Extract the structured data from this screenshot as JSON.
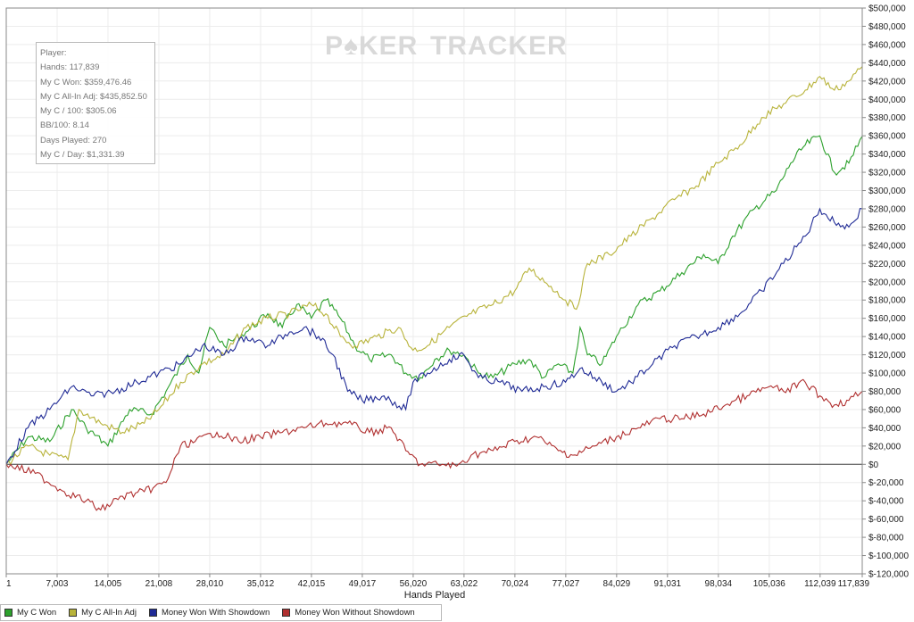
{
  "stats_box": {
    "lines": [
      "Player:",
      "Hands: 117,839",
      "My C Won: $359,476.46",
      "My C All-In Adj: $435,852.50",
      "My C / 100: $305.06",
      "BB/100: 8.14",
      "Days Played: 270",
      "My C / Day: $1,331.39"
    ]
  },
  "watermark": {
    "left": "P♠KER",
    "right": "TRACKER"
  },
  "legend": {
    "items": [
      {
        "label": "My C Won",
        "color": "#2da12d"
      },
      {
        "label": "My C All-In Adj",
        "color": "#b8b33a"
      },
      {
        "label": "Money Won With Showdown",
        "color": "#1f2a95"
      },
      {
        "label": "Money Won Without Showdown",
        "color": "#b03030"
      }
    ]
  },
  "chart_data": {
    "type": "line",
    "title": "",
    "xlabel": "Hands Played",
    "ylabel": "",
    "xlim": [
      1,
      117839
    ],
    "ylim": [
      -120000,
      500000
    ],
    "x_ticks": [
      1,
      7003,
      14005,
      21008,
      28010,
      35012,
      42015,
      49017,
      56020,
      63022,
      70024,
      77027,
      84029,
      91031,
      98034,
      105036,
      112039,
      117839
    ],
    "x_tick_labels": [
      "1",
      "7,003",
      "14,005",
      "21,008",
      "28,010",
      "35,012",
      "42,015",
      "49,017",
      "56,020",
      "63,022",
      "70,024",
      "77,027",
      "84,029",
      "91,031",
      "98,034",
      "105,036",
      "112,039",
      "117,839"
    ],
    "y_ticks": [
      -120000,
      -100000,
      -80000,
      -60000,
      -40000,
      -20000,
      0,
      20000,
      40000,
      60000,
      80000,
      100000,
      120000,
      140000,
      160000,
      180000,
      200000,
      220000,
      240000,
      260000,
      280000,
      300000,
      320000,
      340000,
      360000,
      380000,
      400000,
      420000,
      440000,
      460000,
      480000,
      500000
    ],
    "y_tick_labels": [
      "$-120,000",
      "$-100,000",
      "$-80,000",
      "$-60,000",
      "$-40,000",
      "$-20,000",
      "$0",
      "$20,000",
      "$40,000",
      "$60,000",
      "$80,000",
      "$100,000",
      "$120,000",
      "$140,000",
      "$160,000",
      "$180,000",
      "$200,000",
      "$220,000",
      "$240,000",
      "$260,000",
      "$280,000",
      "$300,000",
      "$320,000",
      "$340,000",
      "$360,000",
      "$380,000",
      "$400,000",
      "$420,000",
      "$440,000",
      "$460,000",
      "$480,000",
      "$500,000"
    ],
    "grid": true,
    "legend_position": "bottom-left",
    "series": [
      {
        "name": "My C Won",
        "color": "#2da12d",
        "x": [
          1,
          3000,
          6000,
          9000,
          11000,
          14000,
          17000,
          20000,
          22000,
          25000,
          26500,
          28000,
          30000,
          33000,
          36000,
          38000,
          40000,
          42000,
          44000,
          46000,
          48000,
          50000,
          53000,
          55000,
          57000,
          59000,
          61000,
          63000,
          65000,
          67000,
          70000,
          72000,
          74000,
          76000,
          78000,
          79000,
          80000,
          82000,
          84000,
          87000,
          90000,
          93000,
          96000,
          98000,
          100000,
          103000,
          106000,
          108000,
          110000,
          112000,
          114000,
          116000,
          117839
        ],
        "y": [
          0,
          30000,
          25000,
          60000,
          40000,
          20000,
          60000,
          55000,
          80000,
          120000,
          100000,
          150000,
          130000,
          145000,
          165000,
          150000,
          175000,
          160000,
          180000,
          160000,
          130000,
          115000,
          120000,
          100000,
          95000,
          115000,
          125000,
          120000,
          100000,
          95000,
          110000,
          115000,
          95000,
          110000,
          100000,
          150000,
          120000,
          110000,
          140000,
          175000,
          190000,
          210000,
          230000,
          220000,
          250000,
          280000,
          300000,
          330000,
          350000,
          360000,
          320000,
          330000,
          359476
        ]
      },
      {
        "name": "My C All-In Adj",
        "color": "#b8b33a",
        "x": [
          1,
          3000,
          6000,
          8500,
          10000,
          13000,
          16000,
          19000,
          21000,
          24000,
          27000,
          30000,
          33000,
          36000,
          39000,
          42000,
          44000,
          46000,
          48000,
          51000,
          54000,
          56000,
          58000,
          61000,
          64000,
          67000,
          70000,
          72000,
          75000,
          77000,
          78500,
          80000,
          83000,
          86000,
          89000,
          92000,
          95000,
          98000,
          101000,
          104000,
          107000,
          110000,
          112000,
          114000,
          116000,
          117839
        ],
        "y": [
          0,
          20000,
          10000,
          5000,
          60000,
          45000,
          35000,
          45000,
          60000,
          90000,
          110000,
          120000,
          150000,
          160000,
          165000,
          175000,
          165000,
          140000,
          130000,
          140000,
          150000,
          125000,
          130000,
          150000,
          165000,
          175000,
          190000,
          215000,
          195000,
          180000,
          170000,
          220000,
          230000,
          250000,
          270000,
          290000,
          305000,
          330000,
          350000,
          380000,
          395000,
          410000,
          425000,
          410000,
          420000,
          435852
        ]
      },
      {
        "name": "Money Won With Showdown",
        "color": "#1f2a95",
        "x": [
          1,
          3000,
          6000,
          9000,
          12000,
          15000,
          18000,
          21000,
          24000,
          27000,
          30000,
          33000,
          36000,
          39000,
          41000,
          43000,
          45000,
          47000,
          49000,
          52000,
          55000,
          56000,
          58000,
          61000,
          63000,
          65000,
          68000,
          71000,
          74000,
          77000,
          79000,
          81000,
          84000,
          86000,
          89000,
          92000,
          95000,
          98000,
          101000,
          104000,
          107000,
          110000,
          112000,
          114000,
          116000,
          117839
        ],
        "y": [
          0,
          40000,
          60000,
          85000,
          75000,
          80000,
          90000,
          100000,
          110000,
          130000,
          120000,
          140000,
          130000,
          145000,
          150000,
          140000,
          120000,
          80000,
          70000,
          75000,
          60000,
          90000,
          100000,
          115000,
          120000,
          95000,
          90000,
          80000,
          85000,
          90000,
          105000,
          95000,
          80000,
          90000,
          110000,
          130000,
          140000,
          150000,
          165000,
          190000,
          220000,
          250000,
          280000,
          265000,
          260000,
          280000
        ]
      },
      {
        "name": "Money Won Without Showdown",
        "color": "#b03030",
        "x": [
          1,
          4000,
          8000,
          11000,
          13000,
          16000,
          19000,
          22000,
          24000,
          26000,
          29000,
          32000,
          35000,
          38000,
          41000,
          44000,
          47000,
          50000,
          53000,
          55000,
          57000,
          60000,
          62000,
          64000,
          67000,
          70000,
          73000,
          76000,
          78000,
          81000,
          84000,
          87000,
          90000,
          93000,
          96000,
          99000,
          102000,
          105000,
          107000,
          110000,
          112000,
          114000,
          116000,
          117839
        ],
        "y": [
          0,
          -10000,
          -30000,
          -40000,
          -50000,
          -35000,
          -30000,
          -20000,
          20000,
          25000,
          35000,
          25000,
          30000,
          35000,
          40000,
          45000,
          45000,
          35000,
          40000,
          15000,
          0,
          0,
          -2000,
          10000,
          15000,
          25000,
          30000,
          15000,
          10000,
          20000,
          30000,
          40000,
          50000,
          50000,
          55000,
          65000,
          75000,
          85000,
          80000,
          90000,
          75000,
          65000,
          70000,
          80000
        ]
      }
    ]
  }
}
